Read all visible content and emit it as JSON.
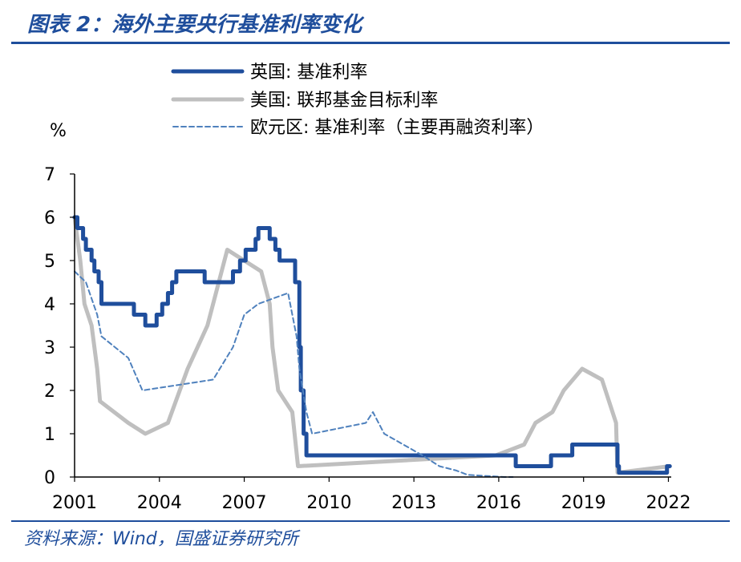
{
  "header": {
    "title": "图表 2：海外主要央行基准利率变化"
  },
  "footer": {
    "source": "资料来源：Wind，国盛证券研究所"
  },
  "chart_data": {
    "type": "line",
    "unit_label": "%",
    "xlim": [
      2001,
      2022.1
    ],
    "ylim": [
      0,
      7
    ],
    "x_ticks": [
      "2001",
      "2004",
      "2007",
      "2010",
      "2013",
      "2016",
      "2019",
      "2022"
    ],
    "x_tick_values": [
      2001,
      2004,
      2007,
      2010,
      2013,
      2016,
      2019,
      2022
    ],
    "y_ticks": [
      "0",
      "1",
      "2",
      "3",
      "4",
      "5",
      "6",
      "7"
    ],
    "y_tick_values": [
      0,
      1,
      2,
      3,
      4,
      5,
      6,
      7
    ],
    "legend_position": "top-center",
    "colors": {
      "uk": "#1f4e9c",
      "us": "#bfbfbf",
      "ecb": "#4f81bd",
      "axis": "#000000"
    },
    "series": [
      {
        "key": "uk",
        "name": "英国: 基准利率",
        "style": "solid-thick",
        "points": [
          [
            2001.0,
            6.0
          ],
          [
            2001.1,
            5.75
          ],
          [
            2001.3,
            5.5
          ],
          [
            2001.4,
            5.25
          ],
          [
            2001.6,
            5.0
          ],
          [
            2001.7,
            4.75
          ],
          [
            2001.85,
            4.5
          ],
          [
            2001.95,
            4.0
          ],
          [
            2003.1,
            3.75
          ],
          [
            2003.5,
            3.5
          ],
          [
            2003.9,
            3.75
          ],
          [
            2004.1,
            4.0
          ],
          [
            2004.3,
            4.25
          ],
          [
            2004.45,
            4.5
          ],
          [
            2004.6,
            4.75
          ],
          [
            2005.6,
            4.5
          ],
          [
            2006.6,
            4.75
          ],
          [
            2006.85,
            5.0
          ],
          [
            2007.05,
            5.25
          ],
          [
            2007.4,
            5.5
          ],
          [
            2007.5,
            5.75
          ],
          [
            2007.9,
            5.5
          ],
          [
            2008.1,
            5.25
          ],
          [
            2008.25,
            5.0
          ],
          [
            2008.8,
            4.5
          ],
          [
            2008.95,
            3.0
          ],
          [
            2009.0,
            2.0
          ],
          [
            2009.1,
            1.0
          ],
          [
            2009.2,
            0.5
          ],
          [
            2016.6,
            0.25
          ],
          [
            2017.85,
            0.5
          ],
          [
            2018.6,
            0.75
          ],
          [
            2020.2,
            0.25
          ],
          [
            2020.25,
            0.1
          ],
          [
            2021.95,
            0.25
          ],
          [
            2022.05,
            0.25
          ]
        ]
      },
      {
        "key": "us",
        "name": "美国: 联邦基金目标利率",
        "style": "solid-thick",
        "points": [
          [
            2001.0,
            6.0
          ],
          [
            2001.2,
            5.0
          ],
          [
            2001.35,
            4.0
          ],
          [
            2001.6,
            3.5
          ],
          [
            2001.8,
            2.5
          ],
          [
            2001.9,
            1.75
          ],
          [
            2002.9,
            1.25
          ],
          [
            2003.5,
            1.0
          ],
          [
            2004.3,
            1.25
          ],
          [
            2005.0,
            2.5
          ],
          [
            2005.7,
            3.5
          ],
          [
            2006.4,
            5.25
          ],
          [
            2007.6,
            4.75
          ],
          [
            2007.9,
            4.0
          ],
          [
            2008.0,
            3.0
          ],
          [
            2008.2,
            2.0
          ],
          [
            2008.7,
            1.5
          ],
          [
            2008.9,
            0.25
          ],
          [
            2015.9,
            0.5
          ],
          [
            2016.9,
            0.75
          ],
          [
            2017.3,
            1.25
          ],
          [
            2017.9,
            1.5
          ],
          [
            2018.3,
            2.0
          ],
          [
            2018.95,
            2.5
          ],
          [
            2019.65,
            2.25
          ],
          [
            2019.9,
            1.75
          ],
          [
            2020.15,
            1.25
          ],
          [
            2020.2,
            0.1
          ],
          [
            2022.05,
            0.25
          ]
        ]
      },
      {
        "key": "ecb",
        "name": "欧元区: 基准利率（主要再融资利率）",
        "style": "dashed",
        "points": [
          [
            2001.0,
            4.75
          ],
          [
            2001.4,
            4.5
          ],
          [
            2001.8,
            3.75
          ],
          [
            2001.95,
            3.25
          ],
          [
            2002.9,
            2.75
          ],
          [
            2003.4,
            2.0
          ],
          [
            2005.9,
            2.25
          ],
          [
            2006.6,
            3.0
          ],
          [
            2007.0,
            3.75
          ],
          [
            2007.5,
            4.0
          ],
          [
            2008.55,
            4.25
          ],
          [
            2008.85,
            3.25
          ],
          [
            2008.95,
            2.5
          ],
          [
            2009.2,
            1.5
          ],
          [
            2009.4,
            1.0
          ],
          [
            2011.3,
            1.25
          ],
          [
            2011.55,
            1.5
          ],
          [
            2011.95,
            1.0
          ],
          [
            2013.3,
            0.5
          ],
          [
            2013.9,
            0.25
          ],
          [
            2014.5,
            0.15
          ],
          [
            2014.9,
            0.05
          ],
          [
            2016.2,
            0.0
          ],
          [
            2016.5,
            0.0
          ]
        ]
      }
    ]
  }
}
